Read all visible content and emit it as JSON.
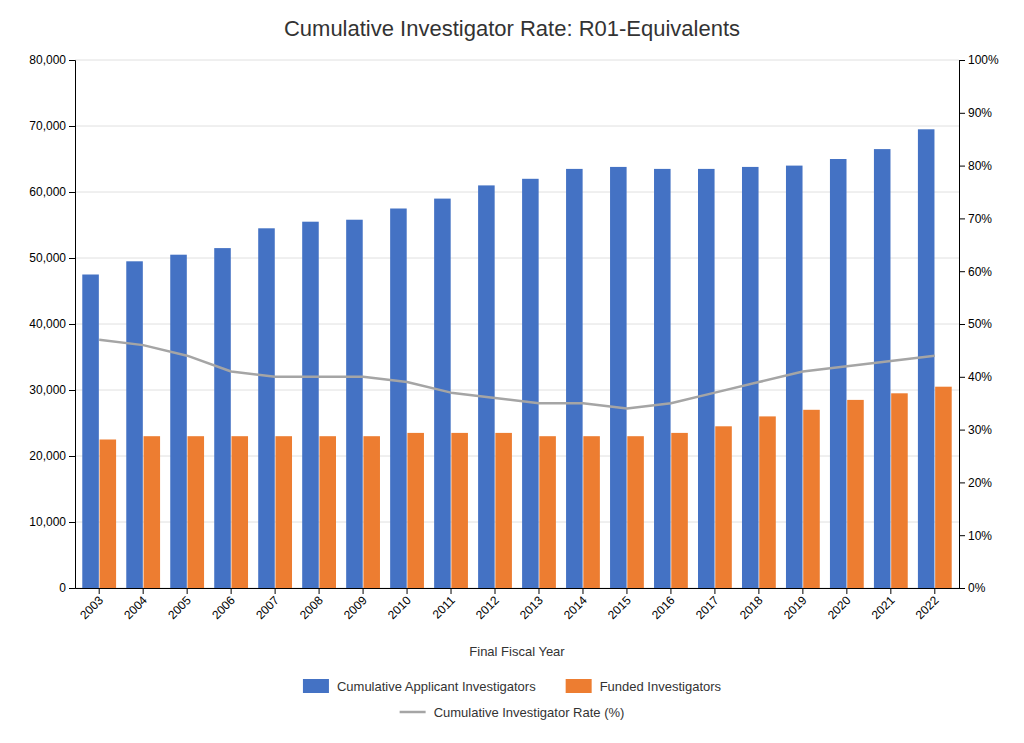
{
  "chart_data": {
    "type": "bar",
    "title": "Cumulative Investigator Rate: R01-Equivalents",
    "x_label": "Final Fiscal Year",
    "categories": [
      "2003",
      "2004",
      "2005",
      "2006",
      "2007",
      "2008",
      "2009",
      "2010",
      "2011",
      "2012",
      "2013",
      "2014",
      "2015",
      "2016",
      "2017",
      "2018",
      "2019",
      "2020",
      "2021",
      "2022"
    ],
    "series": [
      {
        "name": "Cumulative Applicant Investigators",
        "color": "#4472C4",
        "values": [
          47500,
          49500,
          50500,
          51500,
          54500,
          55500,
          55800,
          57500,
          59000,
          61000,
          62000,
          63500,
          63800,
          63500,
          63500,
          63800,
          64000,
          65000,
          66500,
          69500
        ]
      },
      {
        "name": "Funded Investigators",
        "color": "#ED7D31",
        "values": [
          22500,
          23000,
          23000,
          23000,
          23000,
          23000,
          23000,
          23500,
          23500,
          23500,
          23000,
          23000,
          23000,
          23500,
          24500,
          26000,
          27000,
          28500,
          29500,
          30500
        ]
      },
      {
        "name": "Cumulative Investigator Rate (%)",
        "type": "line",
        "axis": "y2",
        "color": "#A5A5A5",
        "values": [
          47,
          46,
          44,
          41,
          40,
          40,
          40,
          39,
          37,
          36,
          35,
          35,
          34,
          35,
          37,
          39,
          41,
          42,
          43,
          44
        ]
      }
    ],
    "ylim": [
      0,
      80000
    ],
    "yticks": [
      0,
      {
        "value": 10000,
        "label": "10,000"
      },
      {
        "value": 20000,
        "label": "20,000"
      },
      {
        "value": 30000,
        "label": "30,000"
      },
      {
        "value": 40000,
        "label": "40,000"
      },
      {
        "value": 50000,
        "label": "50,000"
      },
      {
        "value": 60000,
        "label": "60,000"
      },
      {
        "value": 70000,
        "label": "70,000"
      },
      {
        "value": 80000,
        "label": "80,000"
      }
    ],
    "y2lim": [
      0,
      100
    ],
    "y2ticks": [
      {
        "value": 0,
        "label": "0%"
      },
      {
        "value": 10,
        "label": "10%"
      },
      {
        "value": 20,
        "label": "20%"
      },
      {
        "value": 30,
        "label": "30%"
      },
      {
        "value": 40,
        "label": "40%"
      },
      {
        "value": 50,
        "label": "50%"
      },
      {
        "value": 60,
        "label": "60%"
      },
      {
        "value": 70,
        "label": "70%"
      },
      {
        "value": 80,
        "label": "80%"
      },
      {
        "value": 90,
        "label": "90%"
      },
      {
        "value": 100,
        "label": "100%"
      }
    ],
    "grid": true,
    "legend": "bottom"
  }
}
